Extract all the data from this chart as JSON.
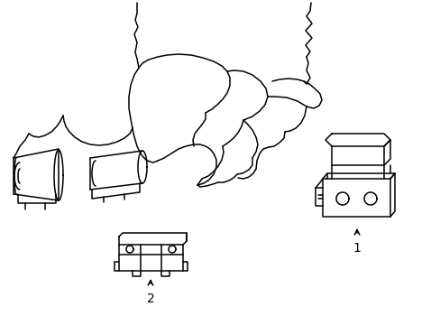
{
  "background_color": "#ffffff",
  "line_color": "#000000",
  "line_width": 1.1,
  "figsize": [
    4.89,
    3.6
  ],
  "dpi": 100,
  "label1": "1",
  "label2": "2",
  "label_fontsize": 10
}
